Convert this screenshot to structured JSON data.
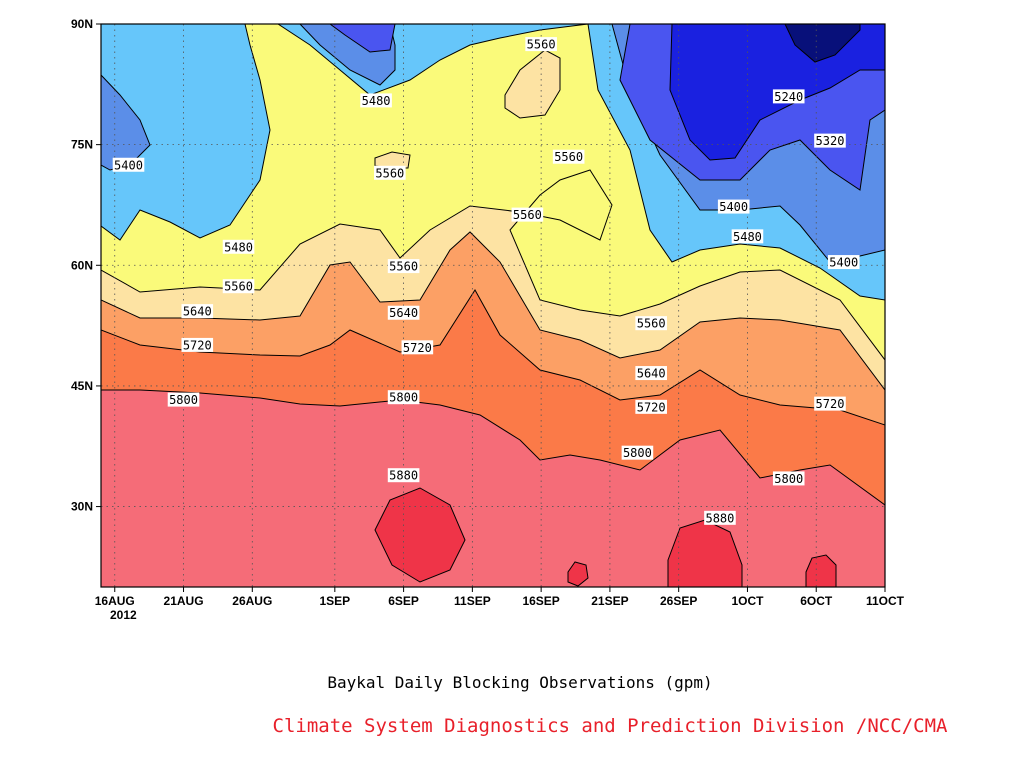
{
  "chart_data": {
    "type": "contour",
    "title": "Baykal Daily Blocking Observations (gpm)",
    "credit": "Climate System Diagnostics and Prediction Division /NCC/CMA",
    "x_axis": {
      "ticks": [
        "16AUG",
        "21AUG",
        "26AUG",
        "1SEP",
        "6SEP",
        "11SEP",
        "16SEP",
        "21SEP",
        "26SEP",
        "1OCT",
        "6OCT",
        "11OCT"
      ],
      "year_label": "2012",
      "range": [
        "2012-08-15",
        "2012-10-11"
      ]
    },
    "y_axis": {
      "ticks": [
        "30N",
        "45N",
        "60N",
        "75N",
        "90N"
      ],
      "tick_values": [
        30,
        45,
        60,
        75,
        90
      ],
      "range": [
        20,
        90
      ]
    },
    "grid": true,
    "contour_levels": [
      5240,
      5320,
      5400,
      5480,
      5560,
      5640,
      5720,
      5800,
      5880
    ],
    "fill_colors": {
      "below_5240": "#08107a",
      "5240": "#1a21e0",
      "5320": "#4a55f0",
      "5400": "#5b8ee8",
      "5480": "#66c6fa",
      "5560": "#fafa7a",
      "5640": "#fde3a3",
      "5720": "#fca065",
      "5800": "#fb7a48",
      "5880": "#f56c78",
      "above_5880": "#ef3448"
    },
    "contour_labels": [
      {
        "value": "5560",
        "date": "2012-09-16",
        "lat": 87.5
      },
      {
        "value": "5480",
        "date": "2012-09-04",
        "lat": 80.5
      },
      {
        "value": "5240",
        "date": "2012-10-04",
        "lat": 81
      },
      {
        "value": "5320",
        "date": "2012-10-07",
        "lat": 75.5
      },
      {
        "value": "5400",
        "date": "2012-08-17",
        "lat": 72.5
      },
      {
        "value": "5560",
        "date": "2012-09-05",
        "lat": 71.5
      },
      {
        "value": "5560",
        "date": "2012-09-18",
        "lat": 73.5
      },
      {
        "value": "5560",
        "date": "2012-09-15",
        "lat": 66.3
      },
      {
        "value": "5400",
        "date": "2012-09-30",
        "lat": 67.3
      },
      {
        "value": "5480",
        "date": "2012-10-01",
        "lat": 63.6
      },
      {
        "value": "5480",
        "date": "2012-08-25",
        "lat": 62.3
      },
      {
        "value": "5400",
        "date": "2012-10-08",
        "lat": 60.4
      },
      {
        "value": "5560",
        "date": "2012-09-06",
        "lat": 59.9
      },
      {
        "value": "5560",
        "date": "2012-08-25",
        "lat": 57.4
      },
      {
        "value": "5640",
        "date": "2012-08-22",
        "lat": 54.3
      },
      {
        "value": "5640",
        "date": "2012-09-06",
        "lat": 54.1
      },
      {
        "value": "5560",
        "date": "2012-09-24",
        "lat": 52.8
      },
      {
        "value": "5720",
        "date": "2012-08-22",
        "lat": 50.1
      },
      {
        "value": "5720",
        "date": "2012-09-07",
        "lat": 49.8
      },
      {
        "value": "5640",
        "date": "2012-09-24",
        "lat": 46.6
      },
      {
        "value": "5800",
        "date": "2012-08-21",
        "lat": 43.3
      },
      {
        "value": "5800",
        "date": "2012-09-06",
        "lat": 43.6
      },
      {
        "value": "5720",
        "date": "2012-09-24",
        "lat": 42.4
      },
      {
        "value": "5720",
        "date": "2012-10-07",
        "lat": 42.8
      },
      {
        "value": "5800",
        "date": "2012-09-23",
        "lat": 36.7
      },
      {
        "value": "5800",
        "date": "2012-10-04",
        "lat": 33.5
      },
      {
        "value": "5880",
        "date": "2012-09-06",
        "lat": 33.9
      },
      {
        "value": "5880",
        "date": "2012-09-29",
        "lat": 28.6
      }
    ]
  }
}
